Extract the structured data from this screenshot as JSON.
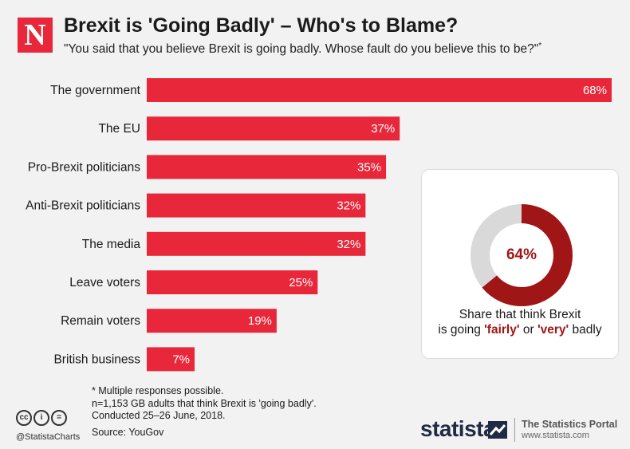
{
  "header": {
    "logo_letter": "N",
    "title": "Brexit is 'Going Badly' – Who's to Blame?",
    "subtitle": "\"You said that you believe Brexit is going badly. Whose fault do you believe this to be?\"",
    "subtitle_mark": "*"
  },
  "chart_data": [
    {
      "type": "bar",
      "orientation": "horizontal",
      "categories": [
        "The government",
        "The EU",
        "Pro-Brexit politicians",
        "Anti-Brexit politicians",
        "The media",
        "Leave voters",
        "Remain voters",
        "British business"
      ],
      "values": [
        68,
        37,
        35,
        32,
        32,
        25,
        19,
        7
      ],
      "value_labels": [
        "68%",
        "37%",
        "35%",
        "32%",
        "32%",
        "25%",
        "19%",
        "7%"
      ],
      "unit": "%",
      "xlim": [
        0,
        68
      ],
      "bar_color": "#e8283a",
      "grid": false,
      "legend": "none"
    },
    {
      "type": "pie",
      "style": "donut",
      "values": [
        64,
        36
      ],
      "center_label": "64%",
      "colors": [
        "#a01616",
        "#d9d9d9"
      ]
    }
  ],
  "donut_caption": {
    "line1": "Share that think Brexit",
    "line2_prefix": "is going ",
    "fairly": "'fairly'",
    "or": " or ",
    "very": "'very'",
    "suffix": " badly"
  },
  "notes": {
    "line1": "* Multiple responses possible.",
    "line2": "n=1,153 GB adults that think Brexit is 'going badly'.",
    "line3": "Conducted 25–26 June, 2018.",
    "source": "Source: YouGov"
  },
  "footer": {
    "cc_icons": [
      "cc",
      "i",
      "="
    ],
    "handle": "@StatistaCharts",
    "brand": "statista",
    "portal": "The Statistics Portal",
    "url": "www.statista.com"
  },
  "colors": {
    "accent": "#e8283a",
    "dark_red": "#a01616",
    "grey": "#d9d9d9",
    "background": "#f2f2f2"
  }
}
